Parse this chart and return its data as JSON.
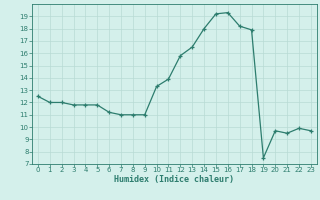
{
  "x": [
    0,
    1,
    2,
    3,
    4,
    5,
    6,
    7,
    8,
    9,
    10,
    11,
    12,
    13,
    14,
    15,
    16,
    17,
    18,
    19,
    20,
    21,
    22,
    23
  ],
  "y": [
    12.5,
    12.0,
    12.0,
    11.8,
    11.8,
    11.8,
    11.2,
    11.0,
    11.0,
    11.0,
    13.3,
    13.9,
    15.8,
    16.5,
    18.0,
    19.2,
    19.3,
    18.2,
    17.9,
    7.5,
    9.7,
    9.5,
    9.9,
    9.7
  ],
  "xlim": [
    -0.5,
    23.5
  ],
  "ylim": [
    7,
    20
  ],
  "yticks": [
    7,
    8,
    9,
    10,
    11,
    12,
    13,
    14,
    15,
    16,
    17,
    18,
    19
  ],
  "xticks": [
    0,
    1,
    2,
    3,
    4,
    5,
    6,
    7,
    8,
    9,
    10,
    11,
    12,
    13,
    14,
    15,
    16,
    17,
    18,
    19,
    20,
    21,
    22,
    23
  ],
  "xlabel": "Humidex (Indice chaleur)",
  "line_color": "#2d7d6e",
  "marker": "+",
  "marker_size": 3,
  "bg_color": "#d4f0eb",
  "grid_color": "#b8dbd5",
  "spine_color": "#2d7d6e",
  "tick_color": "#2d7d6e",
  "label_color": "#2d7d6e",
  "tick_fontsize": 5.0,
  "xlabel_fontsize": 6.0
}
